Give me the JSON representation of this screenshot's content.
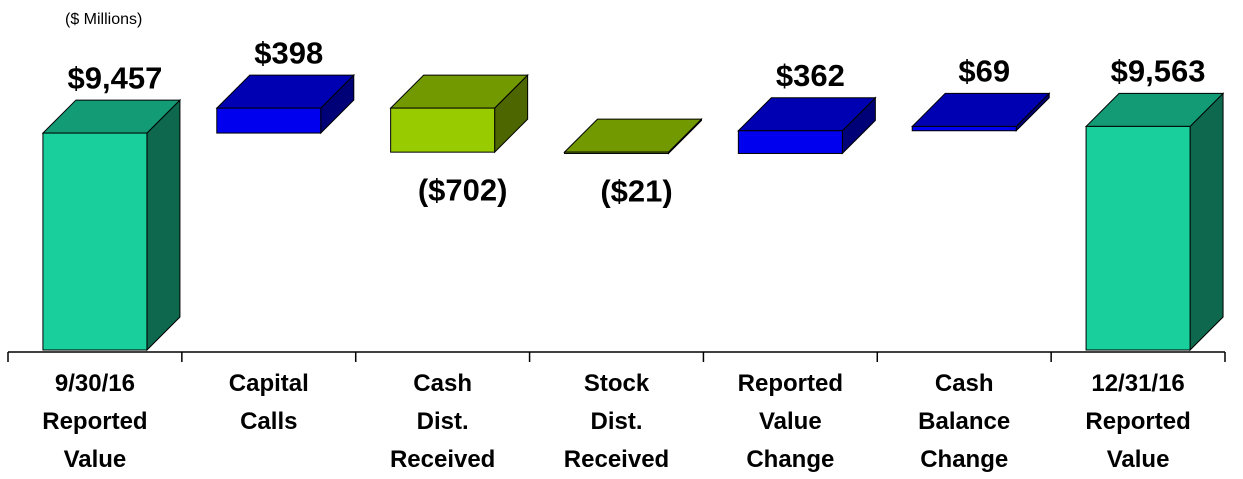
{
  "chart_data": {
    "type": "waterfall",
    "subtitle": "($ Millions)",
    "categories": [
      "9/30/16\nReported\nValue",
      "Capital\nCalls",
      "Cash\nDist.\nReceived",
      "Stock\nDist.\nReceived",
      "Reported\nValue\nChange",
      "Cash\nBalance\nChange",
      "12/31/16\nReported\nValue"
    ],
    "values": [
      9457,
      398,
      -702,
      -21,
      362,
      69,
      9563
    ],
    "value_labels": [
      "$9,457",
      "$398",
      "($702)",
      "($21)",
      "$362",
      "$69",
      "$9,563"
    ],
    "kinds": [
      "total",
      "delta",
      "delta",
      "delta",
      "delta",
      "delta",
      "total"
    ],
    "colors": {
      "total": "#19cf9c",
      "increase": "#0000ee",
      "decrease": "#99cc00"
    },
    "ylim": [
      6000,
      10000
    ]
  }
}
